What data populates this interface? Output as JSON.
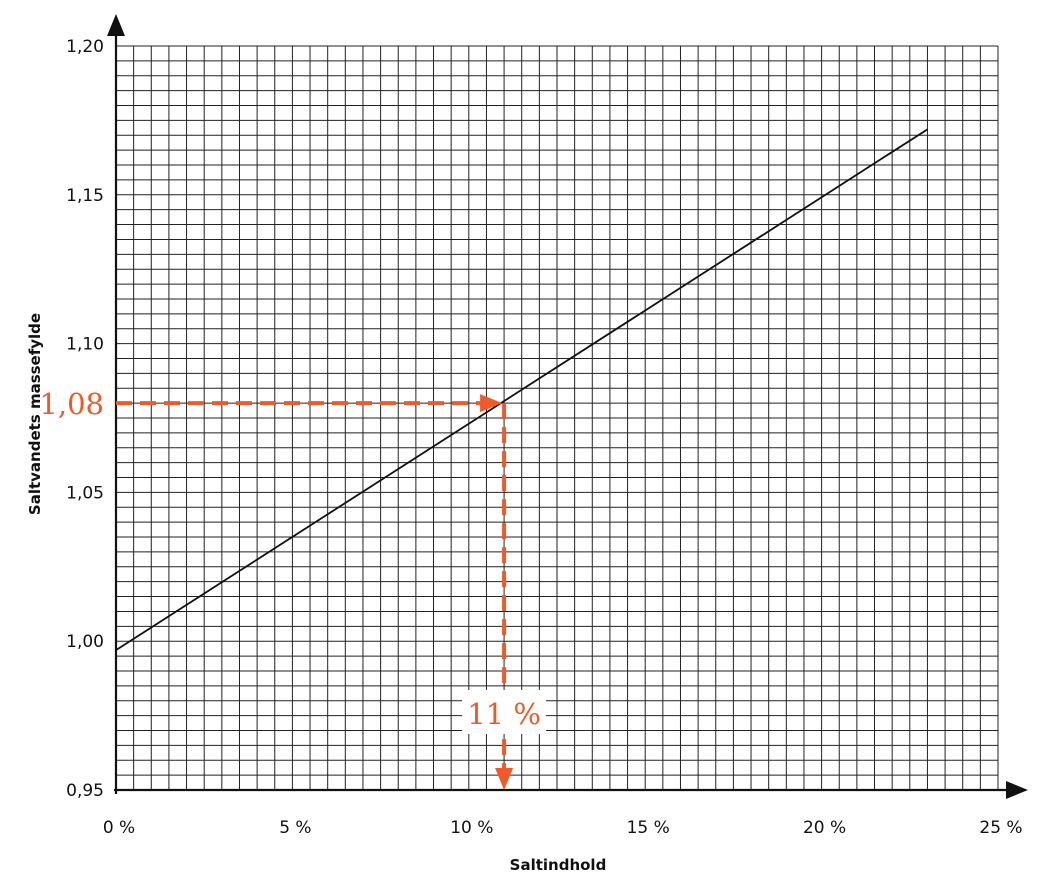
{
  "chart_data": {
    "type": "line",
    "xlabel": "Saltindhold",
    "ylabel": "Saltvandets massefylde",
    "xlim": [
      0,
      25
    ],
    "ylim": [
      0.95,
      1.2
    ],
    "x_ticks": [
      0,
      5,
      10,
      15,
      20,
      25
    ],
    "x_tick_labels": [
      "0 %",
      "5 %",
      "10 %",
      "15 %",
      "20 %",
      "25 %"
    ],
    "y_ticks": [
      0.95,
      1.0,
      1.05,
      1.1,
      1.15,
      1.2
    ],
    "y_tick_labels": [
      "0,95",
      "1,00",
      "1,05",
      "1,10",
      "1,15",
      "1,20"
    ],
    "grid": true,
    "series": [
      {
        "x": [
          0,
          23
        ],
        "y": [
          0.997,
          1.172
        ]
      }
    ],
    "annotation": {
      "y_value": 1.08,
      "x_value": 11,
      "y_label": "1,08",
      "x_label": "11 %",
      "color": "#f05a28"
    }
  }
}
